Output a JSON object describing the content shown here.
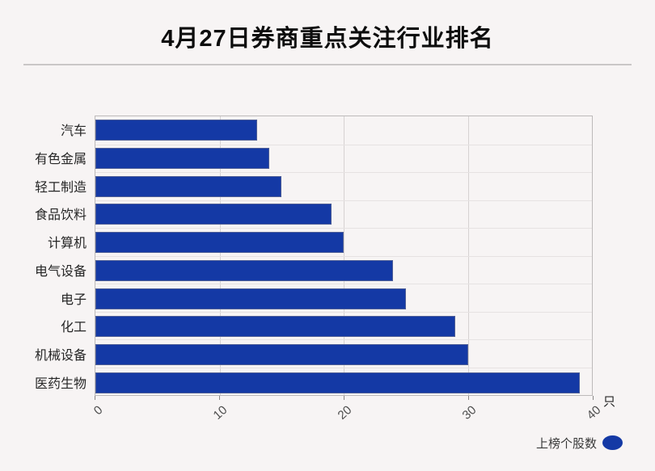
{
  "title": "4月27日券商重点关注行业排名",
  "unit_label": "只",
  "legend": {
    "label": "上榜个股数",
    "marker": "ellipse"
  },
  "colors": {
    "bar": "#1439a5",
    "background": "#f7f4f4",
    "gridline": "#d6d2d2",
    "title_text": "#0d0d0d"
  },
  "chart_data": {
    "type": "bar",
    "orientation": "horizontal",
    "title": "4月27日券商重点关注行业排名",
    "series_name": "上榜个股数",
    "categories": [
      "汽车",
      "有色金属",
      "轻工制造",
      "食品饮料",
      "计算机",
      "电气设备",
      "电子",
      "化工",
      "机械设备",
      "医药生物"
    ],
    "values": [
      13,
      14,
      15,
      19,
      20,
      24,
      25,
      29,
      30,
      39
    ],
    "unit": "只",
    "xlabel": "",
    "ylabel": "",
    "xlim": [
      0,
      40
    ],
    "x_ticks": [
      0,
      10,
      20,
      30,
      40
    ],
    "x_tick_rotation": 45,
    "grid": true,
    "legend_position": "bottom-right"
  }
}
